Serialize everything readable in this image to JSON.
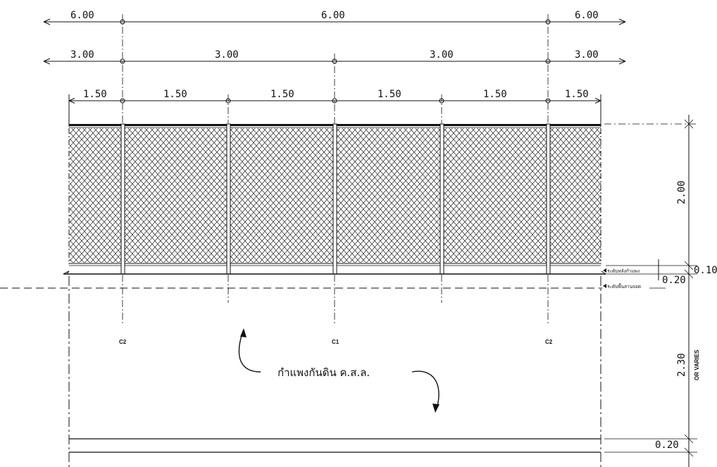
{
  "dimensions": {
    "top_row": [
      "6.00",
      "6.00",
      "6.00"
    ],
    "middle_row": [
      "3.00",
      "3.00",
      "3.00",
      "3.00"
    ],
    "bay_row": [
      "1.50",
      "1.50",
      "1.50",
      "1.50",
      "1.50",
      "1.50"
    ],
    "right_side": {
      "fence_height": "2.00",
      "beam": "0.10",
      "step": "0.20",
      "wall_height": "2.30",
      "wall_note": "OR VARIES",
      "footing": "0.20"
    }
  },
  "column_labels": {
    "left": "C2",
    "center": "C1",
    "right": "C2"
  },
  "level_labels": {
    "top": "ระดับหลังกำแพง",
    "bottom": "ระดับพื้นลานจอด"
  },
  "annotation": {
    "wall_label": "กำแพงกันดิน ค.ส.ล."
  }
}
